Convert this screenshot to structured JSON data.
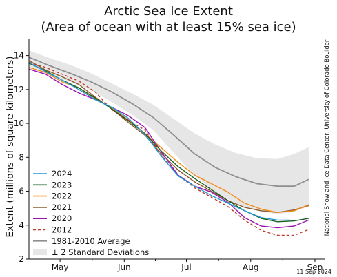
{
  "chart_data": {
    "type": "line",
    "title": "Arctic Sea Ice Extent",
    "subtitle": "(Area of ocean with at least 15% sea ice)",
    "ylabel": "Extent (millions of square kilometers)",
    "xlabel": "",
    "ylim": [
      2,
      15
    ],
    "xlim": [
      0,
      135
    ],
    "yticks": [
      2,
      4,
      6,
      8,
      10,
      12,
      14
    ],
    "xticks": [
      {
        "label": "May",
        "x": 15
      },
      {
        "label": "Jun",
        "x": 46
      },
      {
        "label": "Jul",
        "x": 76
      },
      {
        "label": "Aug",
        "x": 107
      },
      {
        "label": "Sep",
        "x": 138
      }
    ],
    "legend_position": "bottom-left",
    "credit": "National Snow and Ice Data Center, University of Colorado Boulder",
    "date": "11 Sep 2024",
    "band": {
      "name": "± 2 Standard Deviations",
      "color": "#e6e6e6",
      "x": [
        0,
        10,
        20,
        30,
        40,
        50,
        60,
        70,
        80,
        90,
        100,
        110,
        120,
        128,
        135
      ],
      "upper": [
        14.3,
        13.85,
        13.45,
        12.95,
        12.35,
        11.75,
        11.1,
        10.25,
        9.4,
        8.75,
        8.25,
        7.95,
        7.9,
        8.2,
        8.6
      ],
      "lower": [
        13.3,
        12.85,
        12.45,
        11.95,
        11.25,
        10.5,
        9.6,
        8.25,
        6.9,
        5.95,
        5.25,
        4.85,
        4.65,
        4.8,
        5.1
      ]
    },
    "series": [
      {
        "name": "1981-2010 Average",
        "color": "#8f8f8f",
        "dash": "",
        "width": 1.8,
        "x": [
          0,
          10,
          20,
          30,
          40,
          50,
          60,
          70,
          80,
          90,
          100,
          110,
          120,
          128,
          135
        ],
        "y": [
          13.9,
          13.4,
          12.95,
          12.45,
          11.85,
          11.15,
          10.35,
          9.3,
          8.2,
          7.4,
          6.85,
          6.45,
          6.3,
          6.3,
          6.7
        ]
      },
      {
        "name": "2024",
        "color": "#1f9ad6",
        "dash": "",
        "width": 1.4,
        "x": [
          0,
          8,
          16,
          24,
          32,
          40,
          48,
          56,
          64,
          72,
          80,
          88,
          96,
          104,
          112,
          120,
          126
        ],
        "y": [
          13.6,
          13.05,
          12.55,
          12.0,
          11.4,
          10.95,
          10.3,
          9.35,
          8.05,
          6.9,
          6.3,
          5.75,
          5.3,
          4.85,
          4.45,
          4.3,
          4.3
        ]
      },
      {
        "name": "2023",
        "color": "#1b5e20",
        "dash": "",
        "width": 1.4,
        "x": [
          0,
          8,
          16,
          24,
          32,
          40,
          48,
          56,
          64,
          72,
          80,
          88,
          96,
          104,
          112,
          120,
          128,
          135
        ],
        "y": [
          13.55,
          13.1,
          12.55,
          12.1,
          11.5,
          10.85,
          10.15,
          9.4,
          8.35,
          7.45,
          6.75,
          6.1,
          5.45,
          4.85,
          4.4,
          4.2,
          4.25,
          4.4
        ]
      },
      {
        "name": "2022",
        "color": "#f28c1c",
        "dash": "",
        "width": 1.4,
        "x": [
          0,
          8,
          16,
          24,
          32,
          40,
          48,
          56,
          64,
          72,
          80,
          88,
          96,
          104,
          112,
          120,
          128,
          135
        ],
        "y": [
          13.3,
          13.0,
          12.45,
          12.1,
          11.45,
          10.9,
          10.2,
          9.4,
          8.55,
          7.7,
          6.95,
          6.45,
          5.95,
          5.3,
          4.95,
          4.75,
          4.85,
          5.2
        ]
      },
      {
        "name": "2021",
        "color": "#8b5a2b",
        "dash": "",
        "width": 1.4,
        "x": [
          0,
          8,
          16,
          24,
          32,
          40,
          48,
          56,
          64,
          72,
          80,
          88,
          96,
          104,
          112,
          120,
          128,
          135
        ],
        "y": [
          13.7,
          13.15,
          12.75,
          12.3,
          11.55,
          10.85,
          10.05,
          9.3,
          8.2,
          7.25,
          6.55,
          6.0,
          5.45,
          5.05,
          4.85,
          4.75,
          4.9,
          5.15
        ]
      },
      {
        "name": "2020",
        "color": "#9a16b0",
        "dash": "",
        "width": 1.4,
        "x": [
          0,
          8,
          16,
          24,
          32,
          40,
          48,
          56,
          64,
          72,
          80,
          88,
          96,
          104,
          112,
          120,
          128,
          135
        ],
        "y": [
          13.2,
          12.9,
          12.3,
          11.8,
          11.4,
          10.95,
          10.45,
          9.75,
          8.3,
          6.95,
          6.3,
          5.95,
          5.35,
          4.45,
          3.95,
          3.85,
          3.95,
          4.3
        ]
      },
      {
        "name": "2012",
        "color": "#c0392b",
        "dash": "4,3",
        "width": 1.4,
        "x": [
          0,
          8,
          16,
          24,
          32,
          40,
          48,
          56,
          64,
          72,
          80,
          88,
          96,
          104,
          112,
          120,
          128,
          135
        ],
        "y": [
          13.6,
          13.3,
          12.9,
          12.5,
          11.85,
          10.8,
          10.2,
          9.6,
          8.1,
          6.95,
          6.2,
          5.65,
          5.1,
          4.3,
          3.7,
          3.4,
          3.4,
          3.75
        ]
      }
    ],
    "legend": [
      {
        "name": "2024",
        "color": "#1f9ad6",
        "dash": ""
      },
      {
        "name": "2023",
        "color": "#1b5e20",
        "dash": ""
      },
      {
        "name": "2022",
        "color": "#f28c1c",
        "dash": ""
      },
      {
        "name": "2021",
        "color": "#8b5a2b",
        "dash": ""
      },
      {
        "name": "2020",
        "color": "#9a16b0",
        "dash": ""
      },
      {
        "name": "2012",
        "color": "#c0392b",
        "dash": "4,3"
      },
      {
        "name": "1981-2010 Average",
        "color": "#8f8f8f",
        "dash": ""
      },
      {
        "name": "± 2 Standard Deviations",
        "color": "#e6e6e6",
        "dash": "band"
      }
    ]
  }
}
